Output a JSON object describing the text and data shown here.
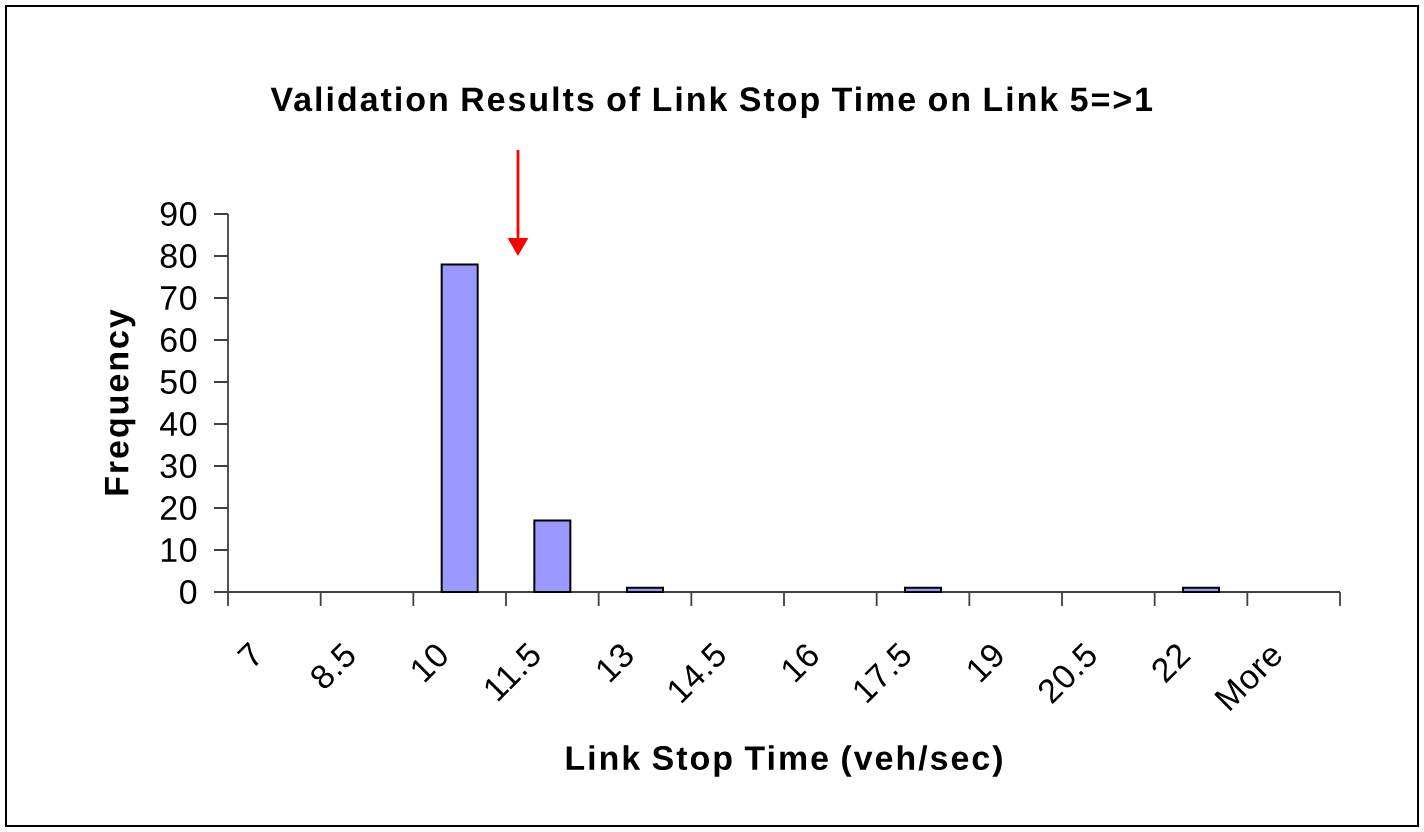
{
  "chart_data": {
    "type": "bar",
    "title": "Validation Results of Link Stop Time on Link 5=>1",
    "xlabel": "Link Stop Time (veh/sec)",
    "ylabel": "Frequency",
    "categories": [
      "7",
      "8.5",
      "10",
      "11.5",
      "13",
      "14.5",
      "16",
      "17.5",
      "19",
      "20.5",
      "22",
      "More"
    ],
    "values": [
      0,
      0,
      78,
      17,
      1,
      0,
      0,
      1,
      0,
      0,
      1,
      0
    ],
    "color": "#9999ff",
    "ylim": [
      0,
      90
    ],
    "yticks": [
      0,
      10,
      20,
      30,
      40,
      50,
      60,
      70,
      80,
      90
    ]
  }
}
